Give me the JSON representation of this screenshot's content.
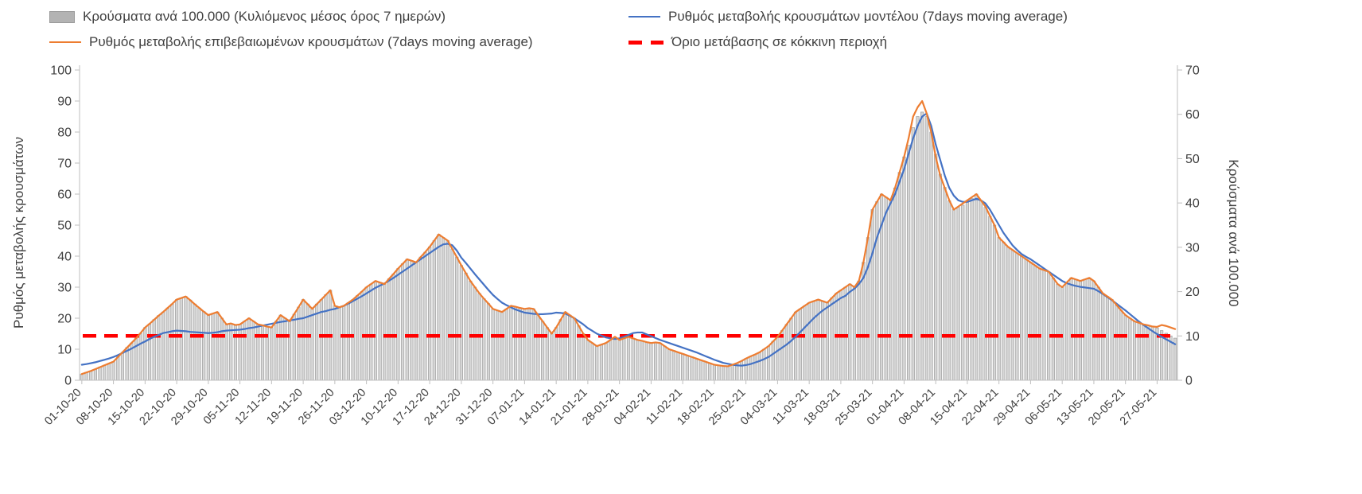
{
  "legend": {
    "bars_label": "Κρούσματα ανά 100.000 (Κυλιόμενος μέσος όρος 7 ημερών)",
    "model_label": "Ρυθμός μεταβολής κρουσμάτων μοντέλου (7days moving average)",
    "confirmed_label": "Ρυθμός μεταβολής επιβεβαιωμένων κρουσμάτων (7days moving average)",
    "threshold_label": "Όριο μετάβασης σε κόκκινη περιοχή"
  },
  "colors": {
    "bars_fill": "#d6d6d6",
    "bars_stroke": "#9e9e9e",
    "model_line": "#4472c4",
    "confirmed_line": "#ed7d31",
    "threshold_line": "#ff0000",
    "axis_line": "#bfbfbf",
    "text": "#404040"
  },
  "chart_data": {
    "type": "bar+line",
    "left_axis": {
      "title": "Ρυθμός μεταβολής κρουσμάτων",
      "min": 0,
      "max": 100,
      "step": 10
    },
    "right_axis": {
      "title": "Κρούσματα ανά 100.000",
      "min": 0,
      "max": 70,
      "step": 10
    },
    "threshold_left_value": 14.3,
    "threshold_right_value": 10,
    "tick_interval_days": 7,
    "x_tick_labels": [
      "01-10-20",
      "08-10-20",
      "15-10-20",
      "22-10-20",
      "29-10-20",
      "05-11-20",
      "12-11-20",
      "19-11-20",
      "26-11-20",
      "03-12-20",
      "10-12-20",
      "17-12-20",
      "24-12-20",
      "31-12-20",
      "07-01-21",
      "14-01-21",
      "21-01-21",
      "28-01-21",
      "04-02-21",
      "11-02-21",
      "18-02-21",
      "25-02-21",
      "04-03-21",
      "11-03-21",
      "18-03-21",
      "25-03-21",
      "01-04-21",
      "08-04-21",
      "15-04-21",
      "22-04-21",
      "29-04-21",
      "06-05-21",
      "13-05-21",
      "20-05-21",
      "27-05-21"
    ],
    "series": [
      {
        "name": "Κρούσματα ανά 100.000 (Κυλιόμενος μέσος όρος 7 ημερών)",
        "type": "bar",
        "axis": "right",
        "values": [
          1.4,
          1.8,
          2.1,
          2.5,
          3.0,
          3.4,
          3.8,
          4.2,
          5.3,
          6.3,
          7.4,
          8.4,
          9.5,
          10.6,
          11.9,
          12.7,
          13.7,
          14.6,
          15.4,
          16.3,
          17.2,
          18.2,
          18.6,
          18.9,
          18.1,
          17.2,
          16.3,
          15.5,
          14.7,
          15.1,
          15.4,
          14.0,
          12.6,
          12.8,
          12.5,
          12.6,
          13.3,
          14.0,
          13.3,
          12.6,
          12.4,
          12.1,
          11.9,
          13.3,
          14.7,
          14.0,
          13.3,
          14.9,
          16.5,
          18.2,
          17.2,
          16.1,
          17.2,
          18.2,
          19.3,
          20.3,
          16.8,
          16.5,
          16.8,
          17.5,
          18.2,
          19.1,
          20.0,
          21.0,
          21.7,
          22.4,
          22.1,
          21.7,
          22.9,
          24.0,
          25.2,
          26.3,
          27.3,
          27.0,
          26.6,
          27.8,
          28.9,
          30.1,
          31.5,
          32.9,
          32.2,
          31.5,
          29.6,
          27.8,
          25.9,
          24.2,
          22.4,
          21.0,
          19.6,
          18.4,
          17.3,
          16.1,
          15.8,
          15.4,
          16.1,
          16.8,
          16.6,
          16.3,
          16.1,
          16.2,
          16.1,
          14.7,
          13.3,
          11.9,
          10.5,
          11.9,
          13.7,
          15.4,
          14.7,
          14.0,
          12.3,
          10.5,
          9.1,
          8.4,
          7.7,
          8.1,
          8.4,
          9.1,
          9.8,
          9.1,
          9.5,
          9.8,
          9.5,
          9.1,
          8.9,
          8.6,
          8.4,
          8.5,
          8.4,
          7.7,
          7.0,
          6.7,
          6.3,
          6.0,
          5.6,
          5.3,
          4.9,
          4.6,
          4.2,
          3.9,
          3.5,
          3.4,
          3.2,
          3.2,
          3.5,
          3.9,
          4.3,
          4.9,
          5.4,
          5.8,
          6.3,
          7.0,
          7.7,
          8.8,
          9.8,
          11.2,
          12.6,
          14.0,
          15.4,
          16.1,
          16.8,
          17.5,
          17.9,
          18.2,
          17.9,
          17.5,
          18.6,
          19.6,
          20.3,
          21.0,
          21.7,
          21.0,
          22.4,
          26.6,
          32.2,
          38.5,
          40.3,
          42.0,
          41.3,
          40.6,
          43.4,
          46.9,
          50.4,
          53.0,
          57.0,
          59.5,
          60.5,
          59.5,
          56.0,
          51.0,
          46.5,
          43.5,
          40.5,
          38.5,
          39.0,
          39.5,
          40.5,
          41.0,
          42.0,
          40.5,
          39.0,
          37.0,
          35.0,
          32.2,
          31.2,
          30.1,
          29.4,
          28.7,
          28.0,
          27.3,
          26.6,
          25.9,
          25.2,
          24.9,
          24.5,
          23.1,
          21.7,
          21.0,
          22.1,
          23.1,
          22.8,
          22.4,
          22.8,
          23.1,
          22.4,
          21.0,
          19.6,
          18.9,
          18.2,
          17.0,
          15.8,
          14.7,
          14.0,
          13.3,
          13.0,
          12.6,
          12.4,
          12.1,
          11.8,
          11.2,
          10.6,
          10.0,
          9.5
        ]
      },
      {
        "name": "Ρυθμός μεταβολής κρουσμάτων μοντέλου (7days moving average)",
        "type": "line",
        "axis": "left",
        "values": [
          5.0,
          5.2,
          5.5,
          5.8,
          6.2,
          6.6,
          7.0,
          7.5,
          8.1,
          8.8,
          9.5,
          10.2,
          11.0,
          11.8,
          12.5,
          13.3,
          14.0,
          14.6,
          15.2,
          15.5,
          15.8,
          16.0,
          15.9,
          15.8,
          15.6,
          15.5,
          15.4,
          15.3,
          15.2,
          15.3,
          15.5,
          15.8,
          16.0,
          16.1,
          16.2,
          16.3,
          16.5,
          16.8,
          17.0,
          17.3,
          17.6,
          17.9,
          18.2,
          18.5,
          18.8,
          19.0,
          19.3,
          19.5,
          19.8,
          20.0,
          20.5,
          21.0,
          21.5,
          22.0,
          22.3,
          22.7,
          23.0,
          23.5,
          24.0,
          24.7,
          25.5,
          26.3,
          27.1,
          28.0,
          28.9,
          29.8,
          30.5,
          31.2,
          32.1,
          33.0,
          34.0,
          35.0,
          36.0,
          37.0,
          38.0,
          39.0,
          40.0,
          41.0,
          42.0,
          43.0,
          43.8,
          44.0,
          43.5,
          41.8,
          39.5,
          37.8,
          36.0,
          34.2,
          32.5,
          30.8,
          29.1,
          27.5,
          26.2,
          25.0,
          24.2,
          23.5,
          22.8,
          22.3,
          21.8,
          21.6,
          21.4,
          21.3,
          21.3,
          21.4,
          21.5,
          21.8,
          21.7,
          21.5,
          20.8,
          20.0,
          19.0,
          18.0,
          16.8,
          15.9,
          15.0,
          14.4,
          13.8,
          13.5,
          13.3,
          13.5,
          14.0,
          14.6,
          15.2,
          15.4,
          15.4,
          14.8,
          14.2,
          13.6,
          13.0,
          12.5,
          12.0,
          11.5,
          11.0,
          10.5,
          10.0,
          9.5,
          9.0,
          8.4,
          7.8,
          7.2,
          6.6,
          6.1,
          5.6,
          5.3,
          5.0,
          4.8,
          4.7,
          4.9,
          5.2,
          5.7,
          6.2,
          6.8,
          7.5,
          8.5,
          9.5,
          10.5,
          11.5,
          12.7,
          14.0,
          15.5,
          17.0,
          18.5,
          20.0,
          21.3,
          22.5,
          23.5,
          24.5,
          25.5,
          26.5,
          27.2,
          28.5,
          29.5,
          31.0,
          33.0,
          36.5,
          41.0,
          46.0,
          50.0,
          54.0,
          57.0,
          60.0,
          64.0,
          68.0,
          73.0,
          78.0,
          82.0,
          85.0,
          86.0,
          82.0,
          76.0,
          71.0,
          66.0,
          62.0,
          59.5,
          58.0,
          57.5,
          57.5,
          58.0,
          58.5,
          58.0,
          57.0,
          55.0,
          52.5,
          50.0,
          47.5,
          45.5,
          43.5,
          42.0,
          40.7,
          39.8,
          39.0,
          38.0,
          37.0,
          36.0,
          35.0,
          34.0,
          33.0,
          32.0,
          31.3,
          30.8,
          30.4,
          30.1,
          29.9,
          29.7,
          29.5,
          28.7,
          27.8,
          26.8,
          25.8,
          24.7,
          23.6,
          22.5,
          21.3,
          20.1,
          18.9,
          17.8,
          16.8,
          15.8,
          14.9,
          14.0,
          13.2,
          12.4,
          11.6
        ]
      },
      {
        "name": "Ρυθμός μεταβολής επιβεβαιωμένων κρουσμάτων (7days moving average)",
        "type": "line",
        "axis": "left",
        "values": [
          2.0,
          2.5,
          3.0,
          3.6,
          4.2,
          4.8,
          5.4,
          6.0,
          7.5,
          9.0,
          10.5,
          12.0,
          13.5,
          15.2,
          17.0,
          18.2,
          19.5,
          20.8,
          22.0,
          23.3,
          24.6,
          26.0,
          26.5,
          27.0,
          25.8,
          24.5,
          23.3,
          22.1,
          21.0,
          21.5,
          22.0,
          20.0,
          18.0,
          18.3,
          17.8,
          18.0,
          19.0,
          20.0,
          19.0,
          18.0,
          17.7,
          17.3,
          17.0,
          19.0,
          21.0,
          20.0,
          19.0,
          21.3,
          23.6,
          26.0,
          24.5,
          23.0,
          24.5,
          26.0,
          27.5,
          29.0,
          24.0,
          23.5,
          24.0,
          25.0,
          26.0,
          27.3,
          28.6,
          30.0,
          31.0,
          32.0,
          31.5,
          31.0,
          32.7,
          34.3,
          36.0,
          37.5,
          39.0,
          38.5,
          38.0,
          39.7,
          41.3,
          43.0,
          45.0,
          47.0,
          46.0,
          45.0,
          42.3,
          39.7,
          37.0,
          34.5,
          32.0,
          30.0,
          28.0,
          26.3,
          24.7,
          23.0,
          22.5,
          22.0,
          23.0,
          24.0,
          23.7,
          23.3,
          23.0,
          23.2,
          23.0,
          21.0,
          19.0,
          17.0,
          15.0,
          17.0,
          19.5,
          22.0,
          21.0,
          20.0,
          17.5,
          15.0,
          13.0,
          12.0,
          11.0,
          11.5,
          12.0,
          13.0,
          14.0,
          13.0,
          13.5,
          14.0,
          13.5,
          13.0,
          12.7,
          12.3,
          12.0,
          12.2,
          12.0,
          11.0,
          10.0,
          9.5,
          9.0,
          8.5,
          8.0,
          7.5,
          7.0,
          6.5,
          6.0,
          5.5,
          5.0,
          4.8,
          4.6,
          4.5,
          5.0,
          5.5,
          6.2,
          7.0,
          7.7,
          8.3,
          9.0,
          10.0,
          11.0,
          12.5,
          14.0,
          16.0,
          18.0,
          20.0,
          22.0,
          23.0,
          24.0,
          25.0,
          25.5,
          26.0,
          25.5,
          25.0,
          26.5,
          28.0,
          29.0,
          30.0,
          31.0,
          30.0,
          32.0,
          38.0,
          46.0,
          55.0,
          57.5,
          60.0,
          59.0,
          58.0,
          62.0,
          67.0,
          72.0,
          78.0,
          85.0,
          88.0,
          90.0,
          86.0,
          80.0,
          72.0,
          66.0,
          62.0,
          58.0,
          55.0,
          56.0,
          57.0,
          58.0,
          59.0,
          60.0,
          58.0,
          56.0,
          53.0,
          50.0,
          46.0,
          44.5,
          43.0,
          42.0,
          41.0,
          40.0,
          39.0,
          38.0,
          37.0,
          36.0,
          35.5,
          35.0,
          33.0,
          31.0,
          30.0,
          31.5,
          33.0,
          32.5,
          32.0,
          32.5,
          33.0,
          32.0,
          30.0,
          28.0,
          27.0,
          26.0,
          24.3,
          22.6,
          21.0,
          20.0,
          19.0,
          18.5,
          18.0,
          17.7,
          17.3,
          17.2,
          17.8,
          17.5,
          17.0,
          16.5
        ]
      }
    ]
  }
}
